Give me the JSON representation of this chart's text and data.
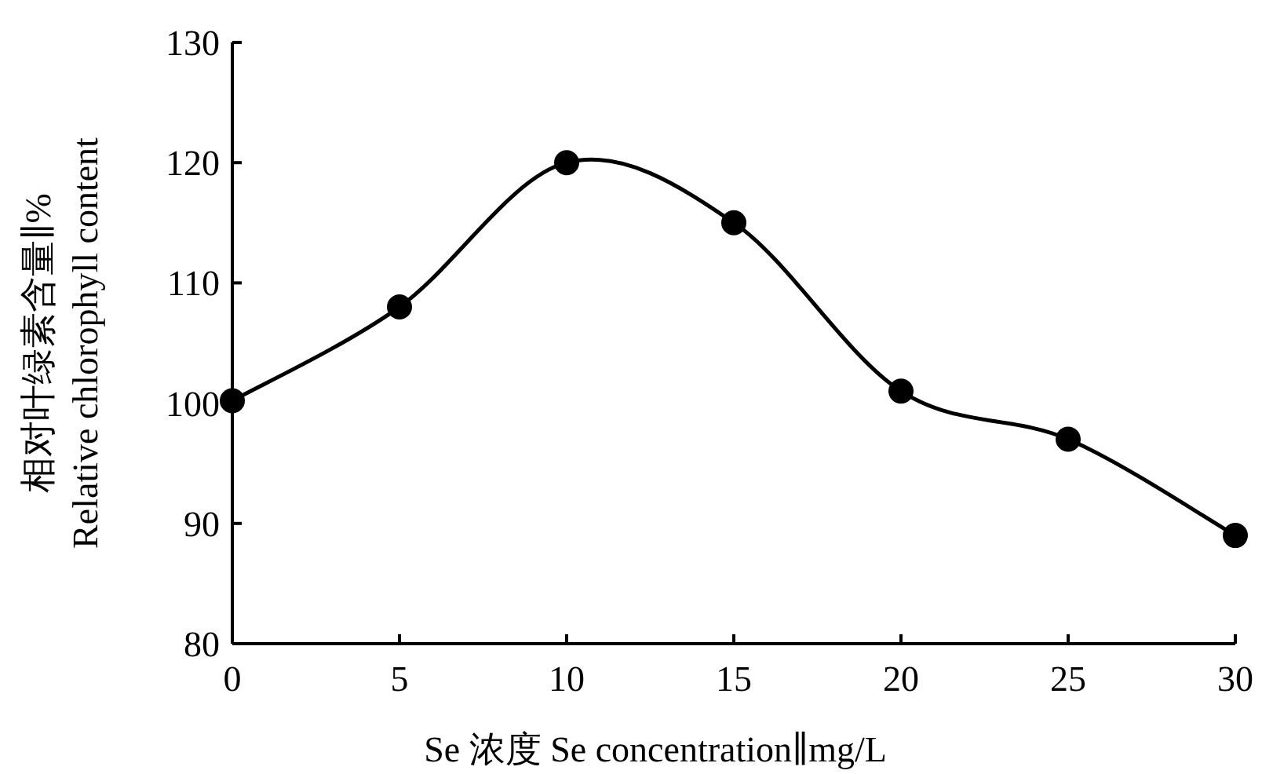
{
  "chart_data": {
    "type": "line",
    "xlabel": "Se 浓度  Se concentration∥mg/L",
    "ylabel": "相对叶绿素含量∥%\nRelative chlorophyll content",
    "x": [
      0,
      5,
      10,
      15,
      20,
      25,
      30
    ],
    "series": [
      {
        "color": "#000000",
        "values": [
          100.2,
          108,
          120,
          115,
          101,
          97,
          89
        ]
      }
    ],
    "xlim": [
      0,
      30
    ],
    "xticks": [
      0,
      5,
      10,
      15,
      20,
      25,
      30
    ],
    "ylim": [
      80,
      130
    ],
    "yticks": [
      80,
      90,
      100,
      110,
      120,
      130
    ],
    "marker": "circle",
    "line_style": "solid",
    "grid": false
  }
}
